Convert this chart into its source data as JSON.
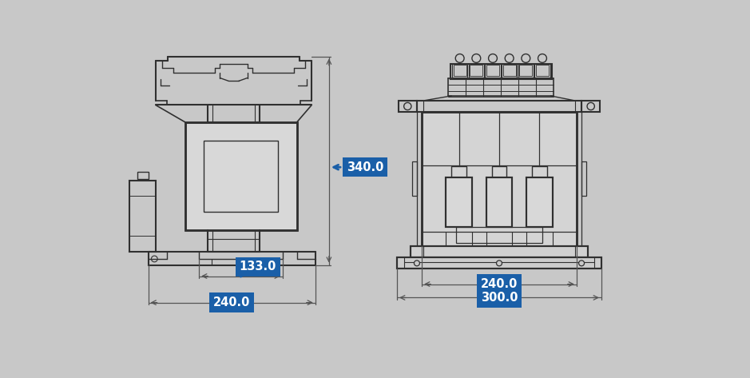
{
  "bg_color": "#c8c8c8",
  "line_color": "#303030",
  "dim_bg_color": "#1a5fa8",
  "dim_text_color": "#ffffff",
  "fig_width": 9.39,
  "fig_height": 4.73,
  "dpi": 100
}
